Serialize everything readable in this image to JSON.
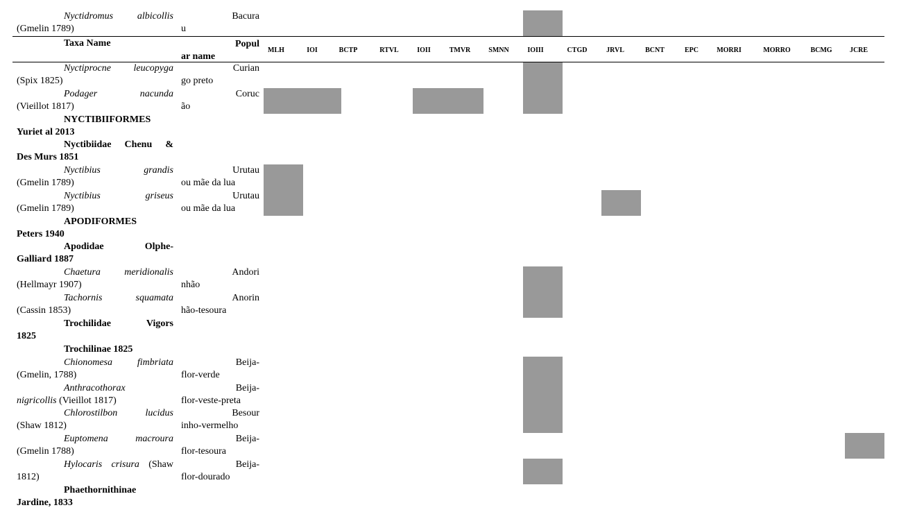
{
  "header": {
    "taxa": "Taxa Name",
    "pop1": "Popul",
    "pop2": "ar name"
  },
  "columns": [
    "MLH",
    "IOI",
    "BCTP",
    "RTVL",
    "IOII",
    "TMVR",
    "SMNN",
    "IOIII",
    "CTGD",
    "JRVL",
    "BCNT",
    "EPC",
    "MORRI",
    "MORRO",
    "BCMG",
    "JCRE"
  ],
  "rows": [
    {
      "sp": "Nyctidromus",
      "ep": "albicollis",
      "auth": "(Gmelin 1789)",
      "pop1": "Bacura",
      "pop2": "u"
    },
    {
      "sp": "Nyctiprocne",
      "ep": "leucopyga",
      "auth": "(Spix 1825)",
      "pop1": "Curian",
      "pop2": "go preto"
    },
    {
      "sp": "Podager",
      "ep": "nacunda",
      "auth": "(Vieillot 1817)",
      "pop1": "Coruc",
      "pop2": "ão"
    },
    {
      "bold1": "NYCTIBIIFORMES",
      "bold2": "Yuriet al 2013"
    },
    {
      "bold1": "Nyctibiidae Chenu &",
      "bold2": "Des Murs 1851"
    },
    {
      "sp": "Nyctibius",
      "ep": "grandis",
      "auth": "(Gmelin 1789)",
      "pop1": "Urutau",
      "pop2": "ou mãe da lua"
    },
    {
      "sp": "Nyctibius",
      "ep": "griseus",
      "auth": "(Gmelin 1789)",
      "pop1": "Urutau",
      "pop2": "ou mãe da lua"
    },
    {
      "bold1": "APODIFORMES",
      "bold2": "Peters 1940"
    },
    {
      "bold1": "Apodidae Olphe-",
      "bold2": "Galliard 1887"
    },
    {
      "sp": "Chaetura",
      "ep": "meridionalis",
      "auth": "(Hellmayr 1907)",
      "pop1": "Andori",
      "pop2": "nhão"
    },
    {
      "sp": "Tachornis",
      "ep": "squamata",
      "auth": "(Cassin 1853)",
      "pop1": "Anorin",
      "pop2": "hão-tesoura"
    },
    {
      "bold1": "Trochilidae Vigors",
      "bold2": "1825"
    },
    {
      "bold1": "Trochilinae 1825"
    },
    {
      "sp": "Chionomesa",
      "ep": "fimbriata",
      "auth": "(Gmelin, 1788)",
      "pop1": "Beija-",
      "pop2": "flor-verde"
    },
    {
      "sp": "Anthracothorax",
      "ep": "",
      "auth_it": "nigricollis",
      "auth": " (Vieillot 1817)",
      "pop1": "Beija-",
      "pop2": "flor-veste-preta"
    },
    {
      "sp": "Chlorostilbon",
      "ep": "lucidus",
      "auth": "(Shaw 1812)",
      "pop1": "Besour",
      "pop2": "inho-vermelho"
    },
    {
      "sp": "Euptomena",
      "ep": "macroura",
      "auth": "(Gmelin 1788)",
      "pop1": "Beija-",
      "pop2": "flor-tesoura"
    },
    {
      "sp": "Hylocaris crisura",
      "ep": "(Shaw",
      "ep_plain": true,
      "auth": "1812)",
      "pop1": "Beija-",
      "pop2": "flor-dourado"
    },
    {
      "bold1": "Phaethornithinae",
      "bold2": "Jardine, 1833"
    }
  ],
  "colors": {
    "cell": "#999999"
  }
}
